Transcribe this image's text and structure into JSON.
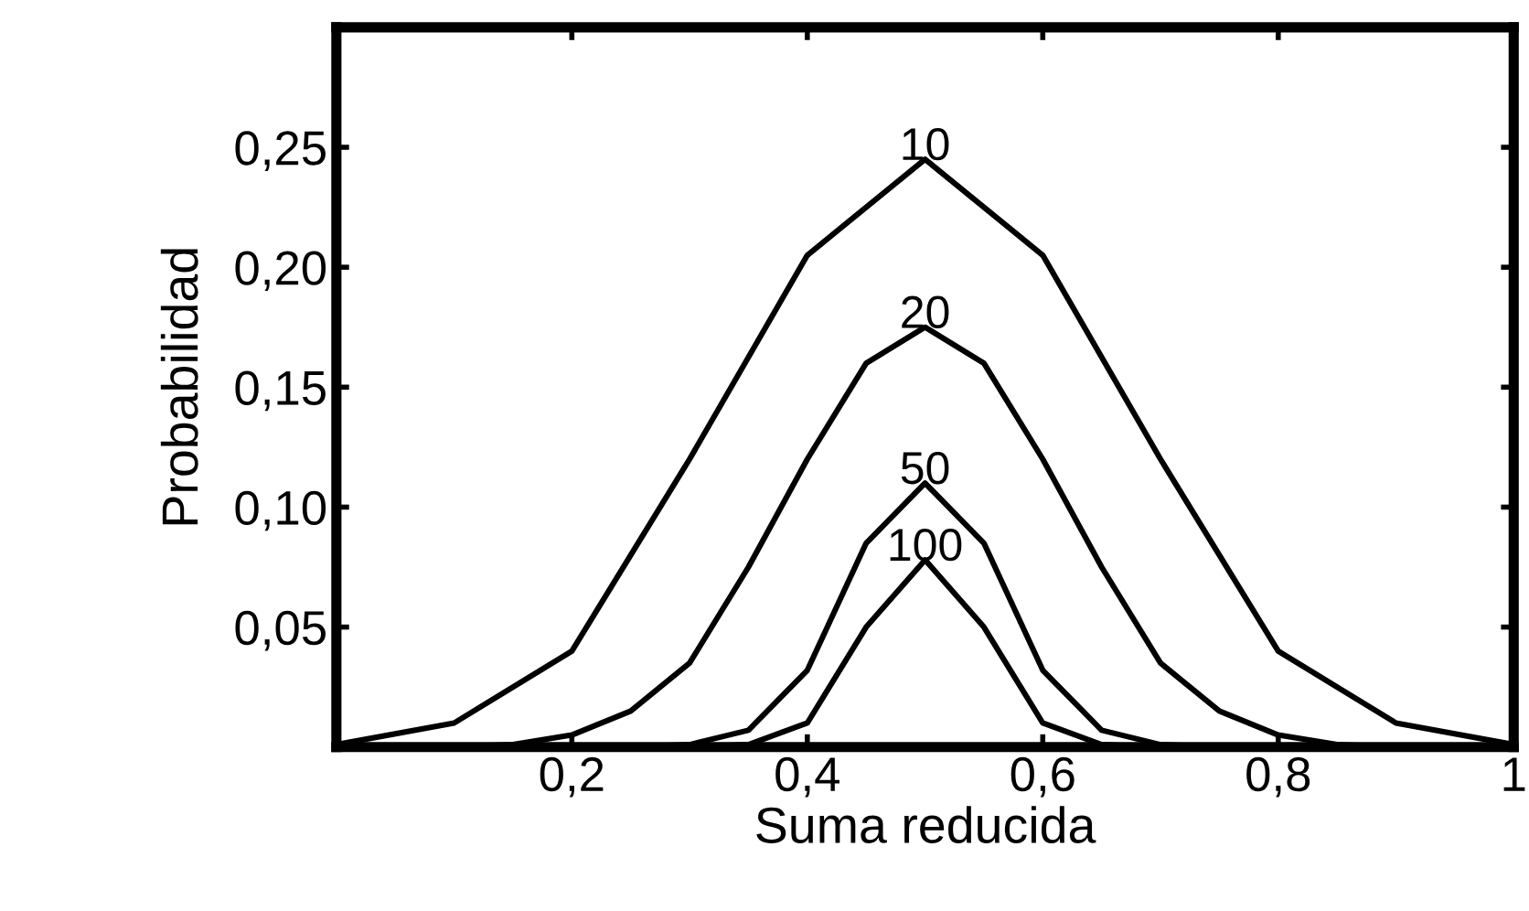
{
  "chart_data": {
    "type": "line",
    "xlabel": "Suma reducida",
    "ylabel": "Probabilidad",
    "xlim": [
      0,
      1
    ],
    "ylim": [
      0,
      0.3
    ],
    "xticks": [
      {
        "value": 0.2,
        "label": "0,2"
      },
      {
        "value": 0.4,
        "label": "0,4"
      },
      {
        "value": 0.6,
        "label": "0,6"
      },
      {
        "value": 0.8,
        "label": "0,8"
      },
      {
        "value": 1,
        "label": "1"
      }
    ],
    "yticks": [
      {
        "value": 0.05,
        "label": "0,05"
      },
      {
        "value": 0.1,
        "label": "0,10"
      },
      {
        "value": 0.15,
        "label": "0,15"
      },
      {
        "value": 0.2,
        "label": "0,20"
      },
      {
        "value": 0.25,
        "label": "0,25"
      }
    ],
    "grid": false,
    "legend": false,
    "marker": "none",
    "line_style": "solid",
    "series": [
      {
        "name": "10",
        "color": "#000000",
        "x": [
          0,
          0.1,
          0.2,
          0.3,
          0.4,
          0.5,
          0.6,
          0.7,
          0.8,
          0.9,
          1
        ],
        "values": [
          0.001,
          0.01,
          0.04,
          0.12,
          0.205,
          0.245,
          0.205,
          0.12,
          0.04,
          0.01,
          0.001
        ]
      },
      {
        "name": "20",
        "color": "#000000",
        "x": [
          0,
          0.1,
          0.15,
          0.2,
          0.25,
          0.3,
          0.35,
          0.4,
          0.45,
          0.5,
          0.55,
          0.6,
          0.65,
          0.7,
          0.75,
          0.8,
          0.85,
          0.9,
          1
        ],
        "values": [
          0,
          0,
          0.001,
          0.005,
          0.015,
          0.035,
          0.075,
          0.12,
          0.16,
          0.175,
          0.16,
          0.12,
          0.075,
          0.035,
          0.015,
          0.005,
          0.001,
          0,
          0
        ]
      },
      {
        "name": "50",
        "color": "#000000",
        "x": [
          0,
          0.25,
          0.3,
          0.35,
          0.4,
          0.45,
          0.5,
          0.55,
          0.6,
          0.65,
          0.7,
          0.75,
          1
        ],
        "values": [
          0,
          0,
          0.001,
          0.007,
          0.032,
          0.085,
          0.11,
          0.085,
          0.032,
          0.007,
          0.001,
          0,
          0
        ]
      },
      {
        "name": "100",
        "color": "#000000",
        "x": [
          0,
          0.3,
          0.35,
          0.4,
          0.45,
          0.5,
          0.55,
          0.6,
          0.65,
          0.7,
          1
        ],
        "values": [
          0,
          0,
          0.001,
          0.01,
          0.05,
          0.078,
          0.05,
          0.01,
          0.001,
          0,
          0
        ]
      }
    ]
  }
}
